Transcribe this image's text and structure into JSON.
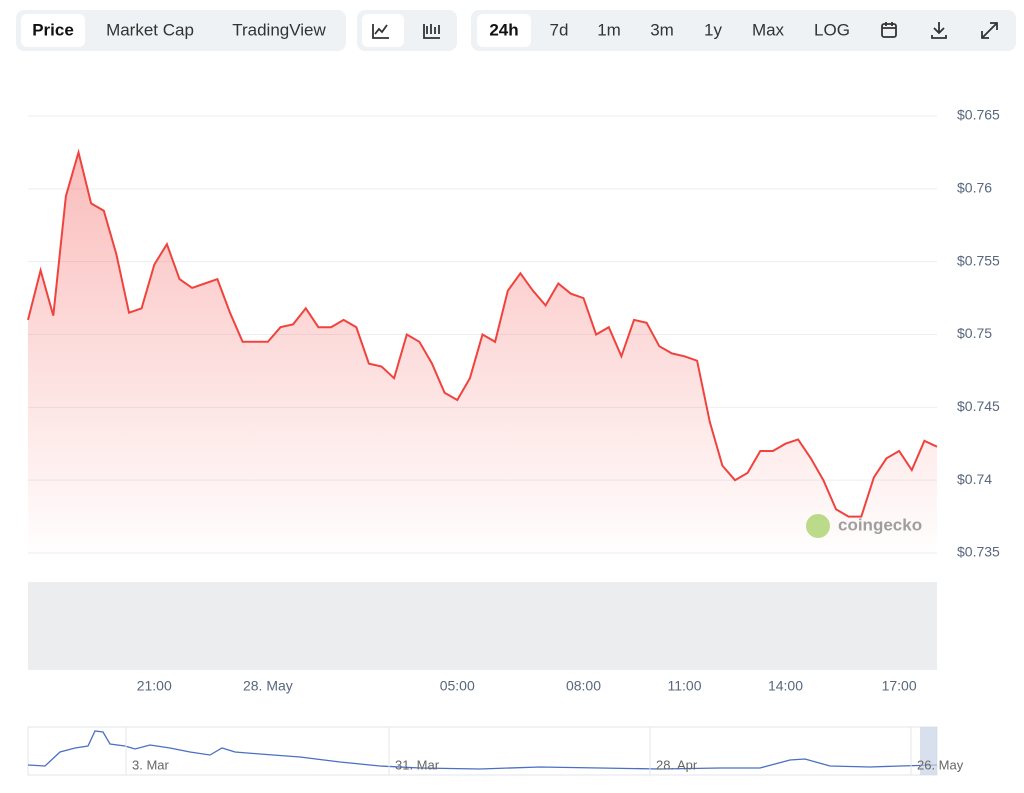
{
  "toolbar": {
    "views": [
      "Price",
      "Market Cap",
      "TradingView"
    ],
    "ranges": [
      "24h",
      "7d",
      "1m",
      "3m",
      "1y",
      "Max",
      "LOG"
    ]
  },
  "chart_data": {
    "type": "line",
    "categories": [
      null,
      null,
      null,
      null,
      null,
      null,
      null,
      null,
      null,
      null,
      "21:00",
      null,
      null,
      null,
      null,
      null,
      null,
      null,
      null,
      "28. May",
      null,
      null,
      null,
      null,
      null,
      null,
      null,
      null,
      null,
      null,
      null,
      null,
      null,
      null,
      "05:00",
      null,
      null,
      null,
      null,
      null,
      null,
      null,
      null,
      null,
      "08:00",
      null,
      null,
      null,
      null,
      null,
      null,
      null,
      "11:00",
      null,
      null,
      null,
      null,
      null,
      null,
      null,
      "14:00",
      null,
      null,
      null,
      null,
      null,
      null,
      null,
      null,
      "17:00",
      null,
      null,
      null
    ],
    "series": [
      {
        "color": "#f0433e",
        "values": [
          0.751,
          0.7544,
          0.7513,
          0.7595,
          0.7625,
          0.759,
          0.7585,
          0.7555,
          0.7515,
          0.7518,
          0.7548,
          0.7562,
          0.7538,
          0.7532,
          0.7535,
          0.7538,
          0.7515,
          0.7495,
          0.7495,
          0.7495,
          0.7505,
          0.7507,
          0.7518,
          0.7505,
          0.7505,
          0.751,
          0.7505,
          0.748,
          0.7478,
          0.747,
          0.75,
          0.7495,
          0.748,
          0.746,
          0.7455,
          0.747,
          0.75,
          0.7495,
          0.753,
          0.7542,
          0.753,
          0.752,
          0.7535,
          0.7528,
          0.7525,
          0.75,
          0.7505,
          0.7485,
          0.751,
          0.7508,
          0.7492,
          0.7487,
          0.7485,
          0.7482,
          0.744,
          0.741,
          0.74,
          0.7405,
          0.742,
          0.742,
          0.7425,
          0.7428,
          0.7415,
          0.74,
          0.738,
          0.7375,
          0.7375,
          0.7402,
          0.7415,
          0.742,
          0.7407,
          0.7427,
          0.7423
        ]
      }
    ],
    "ylim": [
      0.735,
      0.765
    ],
    "yticks": [
      {
        "value": 0.735,
        "label": "$0.735"
      },
      {
        "value": 0.74,
        "label": "$0.74"
      },
      {
        "value": 0.745,
        "label": "$0.745"
      },
      {
        "value": 0.75,
        "label": "$0.75"
      },
      {
        "value": 0.755,
        "label": "$0.755"
      },
      {
        "value": 0.76,
        "label": "$0.76"
      },
      {
        "value": 0.765,
        "label": "$0.765"
      }
    ],
    "grid": true,
    "watermark": "coingecko",
    "navigator_labels": [
      "3. Mar",
      "31. Mar",
      "28. Apr",
      "26. May"
    ]
  }
}
